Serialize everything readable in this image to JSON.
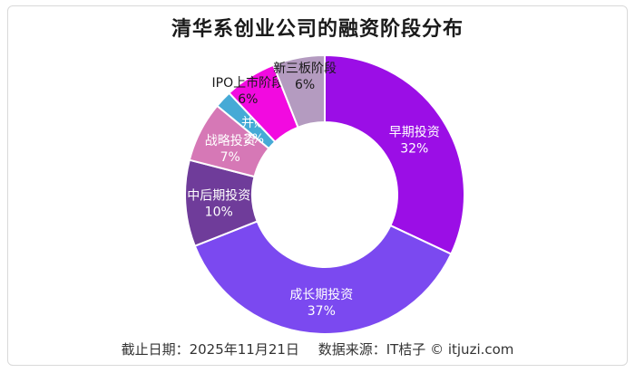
{
  "title": "清华系创业公司的融资阶段分布",
  "footer": {
    "date": "截止日期：2025年11月21日",
    "source": "数据来源：IT桔子 © itjuzi.com"
  },
  "chart_data": {
    "type": "pie",
    "donut": true,
    "title": "清华系创业公司的融资阶段分布",
    "unit": "%",
    "slices": [
      {
        "label": "早期投资",
        "value": 32,
        "color": "#9b0ee6",
        "text_color": "#ffffff"
      },
      {
        "label": "成长期投资",
        "value": 37,
        "color": "#7b49f0",
        "text_color": "#ffffff"
      },
      {
        "label": "中后期投资",
        "value": 10,
        "color": "#6f3c9a",
        "text_color": "#ffffff"
      },
      {
        "label": "战略投资",
        "value": 7,
        "color": "#d678b6",
        "text_color": "#ffffff"
      },
      {
        "label": "并购",
        "value": 2,
        "color": "#46aad6",
        "text_color": "#ffffff"
      },
      {
        "label": "IPO上市阶段",
        "value": 6,
        "color": "#f20ae0",
        "text_color": "#1a1a1a"
      },
      {
        "label": "新三板阶段",
        "value": 6,
        "color": "#b49bc0",
        "text_color": "#1a1a1a"
      }
    ]
  }
}
